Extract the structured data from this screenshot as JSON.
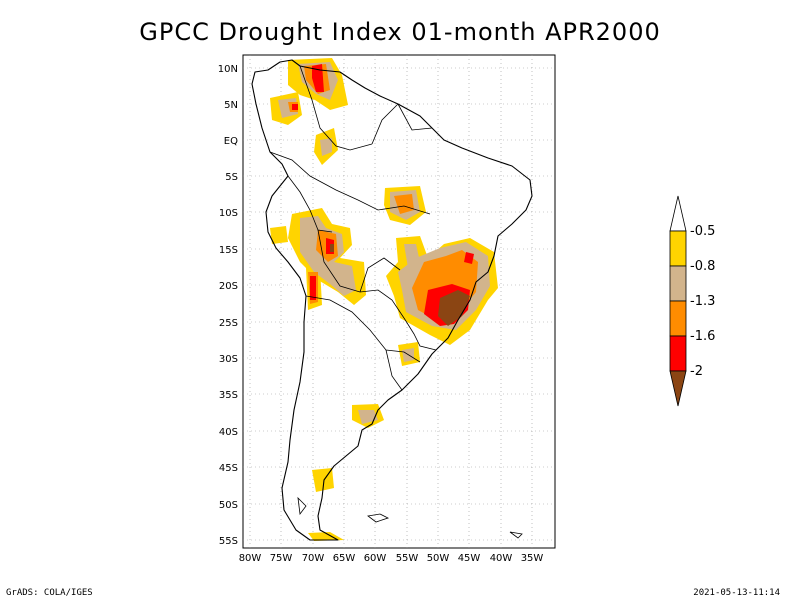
{
  "title": "GPCC Drought Index 01-month APR2000",
  "lat_labels": [
    "10N",
    "5N",
    "EQ",
    "5S",
    "10S",
    "15S",
    "20S",
    "25S",
    "30S",
    "35S",
    "40S",
    "45S",
    "50S",
    "55S"
  ],
  "lon_labels": [
    "80W",
    "75W",
    "70W",
    "65W",
    "60W",
    "55W",
    "50W",
    "45W",
    "40W",
    "35W"
  ],
  "colorbar": {
    "labels": [
      "-0.5",
      "-0.8",
      "-1.3",
      "-1.6",
      "-2"
    ],
    "colors": [
      "#ffffff",
      "#ffd400",
      "#d2b48c",
      "#ff8c00",
      "#ff0000",
      "#8b4513"
    ]
  },
  "footer": {
    "left": "GrADS: COLA/IGES",
    "right": "2021-05-13-11:14"
  }
}
